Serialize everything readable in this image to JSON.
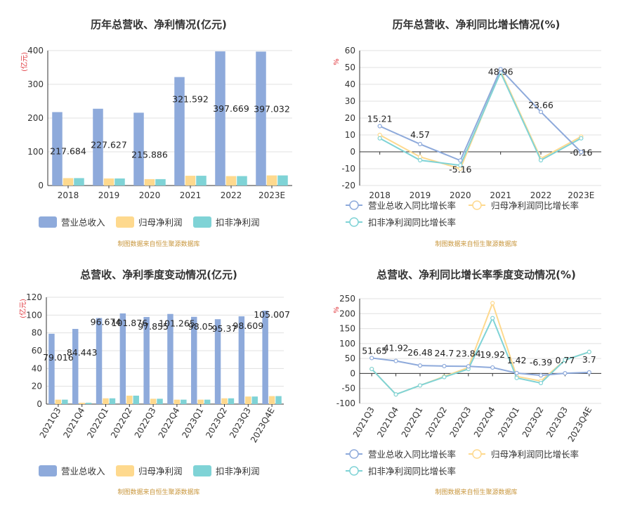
{
  "source_note": "制图数据来自恒生聚源数据库",
  "colors": {
    "revenue": "#8eaadb",
    "parent_np": "#fed98e",
    "deducted_np": "#7fd3d6",
    "grid": "#e0e0e0",
    "axis": "#333333",
    "unit": "#e0383e",
    "source": "#c8963c"
  },
  "chart_data": [
    {
      "type": "bar",
      "title": "历年总营收、净利情况(亿元)",
      "unit_label": "(亿元)",
      "categories": [
        "2018",
        "2019",
        "2020",
        "2021",
        "2022",
        "2023E"
      ],
      "ylim": [
        0,
        400
      ],
      "yticks": [
        0,
        100,
        200,
        300,
        400
      ],
      "series": [
        {
          "name": "营业总收入",
          "values": [
            217.684,
            227.627,
            215.886,
            321.592,
            397.669,
            397.032
          ]
        },
        {
          "name": "归母净利润",
          "values": [
            22,
            21,
            19,
            29,
            28,
            30
          ]
        },
        {
          "name": "扣非净利润",
          "values": [
            22,
            21,
            19,
            29,
            28,
            30
          ]
        }
      ],
      "data_labels": [
        "217.684",
        "227.627",
        "215.886",
        "321.592",
        "397.669",
        "397.032"
      ],
      "legend": "bottom",
      "grid": true
    },
    {
      "type": "line",
      "title": "历年总营收、净利同比增长情况(%)",
      "unit_label": "%",
      "categories": [
        "2018",
        "2019",
        "2020",
        "2021",
        "2022",
        "2023E"
      ],
      "ylim": [
        -20,
        60
      ],
      "yticks": [
        -20,
        -10,
        0,
        10,
        20,
        30,
        40,
        50,
        60
      ],
      "series": [
        {
          "name": "营业总收入同比增长率",
          "values": [
            15.21,
            4.57,
            -5.16,
            48.96,
            23.66,
            -0.16
          ]
        },
        {
          "name": "归母净利润同比增长率",
          "values": [
            10,
            -3,
            -10,
            48,
            -4,
            9
          ]
        },
        {
          "name": "扣非净利润同比增长率",
          "values": [
            8,
            -5,
            -8,
            47,
            -5,
            8
          ]
        }
      ],
      "data_labels": [
        "15.21",
        "4.57",
        "-5.16",
        "48.96",
        "23.66",
        "-0.16"
      ],
      "legend": "bottom",
      "grid": true
    },
    {
      "type": "bar",
      "title": "总营收、净利季度变动情况(亿元)",
      "unit_label": "(亿元)",
      "categories": [
        "2021Q3",
        "2021Q4",
        "2022Q1",
        "2022Q2",
        "2022Q3",
        "2022Q4",
        "2023Q1",
        "2023Q2",
        "2023Q3",
        "2023Q4E"
      ],
      "ylim": [
        0,
        120
      ],
      "yticks": [
        0,
        20,
        40,
        60,
        80,
        100,
        120
      ],
      "series": [
        {
          "name": "营业总收入",
          "values": [
            79.016,
            84.443,
            96.674,
            101.876,
            97.855,
            101.265,
            98.05,
            95.37,
            98.609,
            105.007
          ]
        },
        {
          "name": "归母净利润",
          "values": [
            5,
            1.5,
            6.5,
            9.5,
            6,
            5,
            5,
            6.5,
            8.5,
            9
          ]
        },
        {
          "name": "扣非净利润",
          "values": [
            5,
            1.5,
            6.5,
            9.5,
            6,
            5,
            5,
            6.5,
            8.5,
            9
          ]
        }
      ],
      "data_labels": [
        "79.016",
        "84.443",
        "96.674",
        "101.876",
        "97.855",
        "101.265",
        "98.05",
        "95.37",
        "98.609",
        "105.007"
      ],
      "legend": "bottom",
      "grid": true
    },
    {
      "type": "line",
      "title": "总营收、净利同比增长率季度变动情况(%)",
      "unit_label": "%",
      "categories": [
        "2021Q3",
        "2021Q4",
        "2022Q1",
        "2022Q2",
        "2022Q3",
        "2022Q4",
        "2023Q1",
        "2023Q2",
        "2023Q3",
        "2023Q4E"
      ],
      "ylim": [
        -100,
        250
      ],
      "yticks": [
        -100,
        -50,
        0,
        50,
        100,
        150,
        200,
        250
      ],
      "series": [
        {
          "name": "营业总收入同比增长率",
          "values": [
            51.65,
            41.92,
            26.48,
            24.7,
            23.84,
            19.92,
            1.42,
            -6.39,
            0.77,
            3.7
          ]
        },
        {
          "name": "归母净利润同比增长率",
          "values": [
            15,
            -70,
            -40,
            -10,
            20,
            235,
            -10,
            -25,
            45,
            72
          ]
        },
        {
          "name": "扣非净利润同比增长率",
          "values": [
            15,
            -70,
            -40,
            -12,
            15,
            185,
            -15,
            -32,
            45,
            72
          ]
        }
      ],
      "data_labels": [
        "51.65",
        "41.92",
        "26.48",
        "24.7",
        "23.84",
        "19.92",
        "1.42",
        "-6.39",
        "0.77",
        "3.7"
      ],
      "legend": "bottom",
      "grid": true
    }
  ]
}
